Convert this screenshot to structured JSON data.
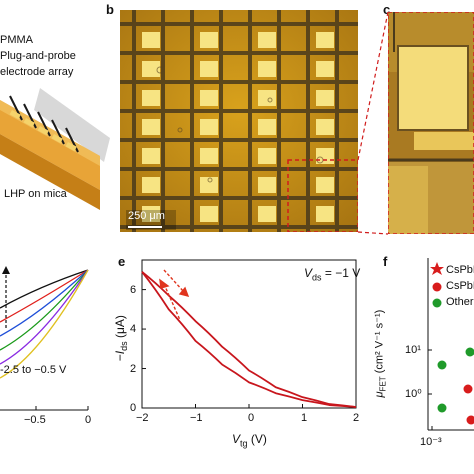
{
  "panel_a": {
    "labels": [
      "PMMA",
      "Plug-and-probe",
      "electrode array",
      "LHP on mica"
    ]
  },
  "panel_b": {
    "label": "b",
    "scale_bar": "250 μm"
  },
  "panel_c": {
    "label": "c"
  },
  "panel_d": {
    "annotation": "-2.5 to −0.5 V",
    "ticks": [
      "−0.5",
      "0"
    ],
    "curve_colors": [
      "#111111",
      "#e0201c",
      "#1f4fd8",
      "#1a9a1a",
      "#8a2be2",
      "#e0c020"
    ]
  },
  "panel_e": {
    "label": "e",
    "annotation": {
      "name": "V",
      "sub": "ds",
      "value": " = −1 V"
    },
    "xlabel": {
      "name": "V",
      "sub": "tg",
      "unit": " (V)"
    },
    "ylabel": {
      "prefix": "−",
      "name": "I",
      "sub": "ds",
      "unit": " (μA)"
    },
    "xticks": [
      "−2",
      "−1",
      "0",
      "1",
      "2"
    ],
    "yticks": [
      "0",
      "2",
      "4",
      "6"
    ]
  },
  "panel_f": {
    "label": "f",
    "legend": [
      {
        "text": "CsPbBr",
        "marker": "star",
        "color": "#d81c1c"
      },
      {
        "text": "CsPbBr",
        "marker": "sphere",
        "color": "#d81c1c"
      },
      {
        "text": "Other LH",
        "marker": "sphere",
        "color": "#1f9a2a"
      }
    ],
    "ylabel": {
      "name": "μ",
      "sub": "FET",
      "unit": " (cm² V⁻¹ s⁻¹)"
    },
    "yticks": [
      "10¹",
      "10⁰"
    ],
    "xticks": [
      "10⁻³"
    ]
  },
  "chart_data": [
    {
      "type": "line",
      "panel": "e",
      "xlabel": "V_tg (V)",
      "ylabel": "−I_ds (μA)",
      "xlim": [
        -2,
        2
      ],
      "ylim": [
        0,
        7.5
      ],
      "series": [
        {
          "x": [
            -2,
            -1.5,
            -1,
            -0.5,
            0,
            0.5,
            1,
            1.5,
            2
          ],
          "y": [
            6.9,
            5.7,
            4.4,
            3.1,
            1.9,
            1.05,
            0.55,
            0.2,
            0.05
          ]
        },
        {
          "x": [
            -2,
            -1.5,
            -1,
            -0.5,
            0,
            0.5,
            1,
            1.5,
            2
          ],
          "y": [
            6.9,
            5.0,
            3.4,
            2.2,
            1.3,
            0.75,
            0.4,
            0.15,
            0.05
          ]
        }
      ]
    }
  ]
}
